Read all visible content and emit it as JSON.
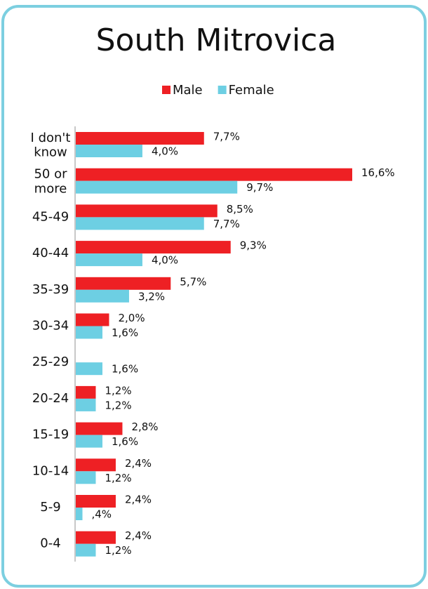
{
  "chart_data": {
    "type": "bar",
    "orientation": "horizontal",
    "title": "South Mitrovica",
    "categories": [
      "I don't know",
      "50 or more",
      "45-49",
      "40-44",
      "35-39",
      "30-34",
      "25-29",
      "20-24",
      "15-19",
      "10-14",
      "5-9",
      "0-4"
    ],
    "series": [
      {
        "name": "Male",
        "color": "#ee2024",
        "values": [
          7.7,
          16.6,
          8.5,
          9.3,
          5.7,
          2.0,
          null,
          1.2,
          2.8,
          2.4,
          2.4,
          2.4
        ],
        "value_labels": [
          "7,7%",
          "16,6%",
          "8,5%",
          "9,3%",
          "5,7%",
          "2,0%",
          null,
          "1,2%",
          "2,8%",
          "2,4%",
          "2,4%",
          "2,4%"
        ]
      },
      {
        "name": "Female",
        "color": "#6dcfe3",
        "values": [
          4.0,
          9.7,
          7.7,
          4.0,
          3.2,
          1.6,
          1.6,
          1.2,
          1.6,
          1.2,
          0.4,
          1.2
        ],
        "value_labels": [
          "4,0%",
          "9,7%",
          "7,7%",
          "4,0%",
          "3,2%",
          "1,6%",
          "1,6%",
          "1,2%",
          "1,6%",
          "1,2%",
          ",4%",
          "1,2%"
        ]
      }
    ],
    "legend": "top"
  }
}
